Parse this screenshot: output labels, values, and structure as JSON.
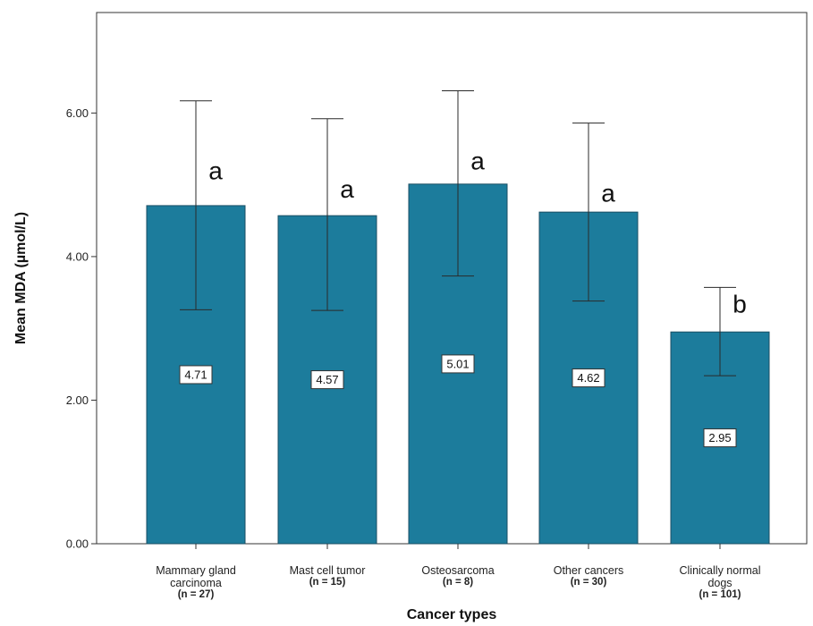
{
  "chart_data": {
    "type": "bar",
    "categories": [
      [
        "Mammary gland",
        "carcinoma"
      ],
      [
        "Mast cell tumor"
      ],
      [
        "Osteosarcoma"
      ],
      [
        "Other cancers"
      ],
      [
        "Clinically normal",
        "dogs"
      ]
    ],
    "sample_sizes": [
      "(n = 27)",
      "(n = 15)",
      "(n = 8)",
      "(n = 30)",
      "(n = 101)"
    ],
    "values": [
      4.71,
      4.57,
      5.01,
      4.62,
      2.95
    ],
    "value_labels": [
      "4.71",
      "4.57",
      "5.01",
      "4.62",
      "2.95"
    ],
    "error_bars": [
      {
        "low": 3.26,
        "high": 6.17
      },
      {
        "low": 3.25,
        "high": 5.92
      },
      {
        "low": 3.73,
        "high": 6.31
      },
      {
        "low": 3.38,
        "high": 5.86
      },
      {
        "low": 2.34,
        "high": 3.57
      }
    ],
    "significance_letters": [
      "a",
      "a",
      "a",
      "a",
      "b"
    ],
    "xlabel": "Cancer types",
    "ylabel": "Mean MDA (µmol/L)",
    "ylim": [
      0,
      7.4
    ],
    "yticks": [
      0,
      2,
      4,
      6
    ],
    "ytick_labels": [
      "0.00",
      "2.00",
      "4.00",
      "6.00"
    ],
    "grid": false,
    "bar_color": "#1c7c9c",
    "bar_edge_color": "#1a4e63"
  }
}
